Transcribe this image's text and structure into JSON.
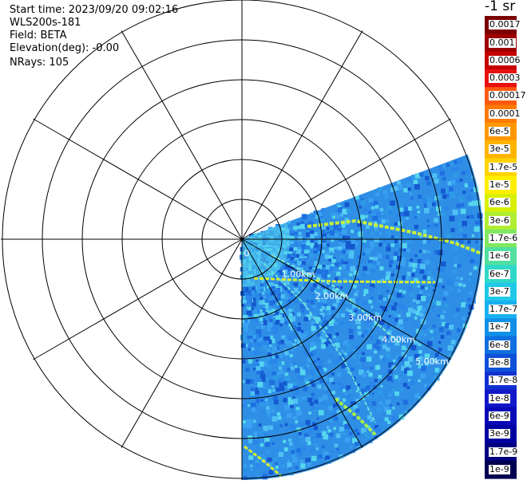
{
  "header": {
    "start_time": "Start time: 2023/09/20 09:02:16",
    "instrument": "WLS200s-181",
    "field": "Field: BETA",
    "elevation": "Elevation(deg): -0.00",
    "nrays": "NRays: 105"
  },
  "range_ring_labels": [
    "0",
    "1.00km",
    "2.00km",
    "3.00km",
    "4.00km",
    "5.00km"
  ],
  "colorbar": {
    "title": "-1 sr",
    "labels": [
      "0.0017",
      "0.001",
      "0.0006",
      "0.0003",
      "0.00017",
      "0.0001",
      "6e-5",
      "3e-5",
      "1.7e-5",
      "1e-5",
      "6e-6",
      "3e-6",
      "1.7e-6",
      "1e-6",
      "6e-7",
      "3e-7",
      "1.7e-7",
      "1e-7",
      "6e-8",
      "3e-8",
      "1.7e-8",
      "1e-8",
      "6e-9",
      "3e-9",
      "1.7e-9",
      "1e-9"
    ],
    "colors": [
      "#7a0000",
      "#9c0000",
      "#c40000",
      "#e81010",
      "#ff5a10",
      "#ff7a00",
      "#ff9800",
      "#ffb400",
      "#ffd200",
      "#ffee00",
      "#d8f000",
      "#b0ee30",
      "#80e860",
      "#50e0a0",
      "#30d8c8",
      "#20c8e8",
      "#18b0f0",
      "#1090e8",
      "#1070e0",
      "#1050d8",
      "#1030d0",
      "#1018c8",
      "#0808b8",
      "#0000a0",
      "#000080",
      "#000050"
    ]
  },
  "colors": {
    "background_field": "#2f8fe6",
    "rings": "#000000"
  }
}
